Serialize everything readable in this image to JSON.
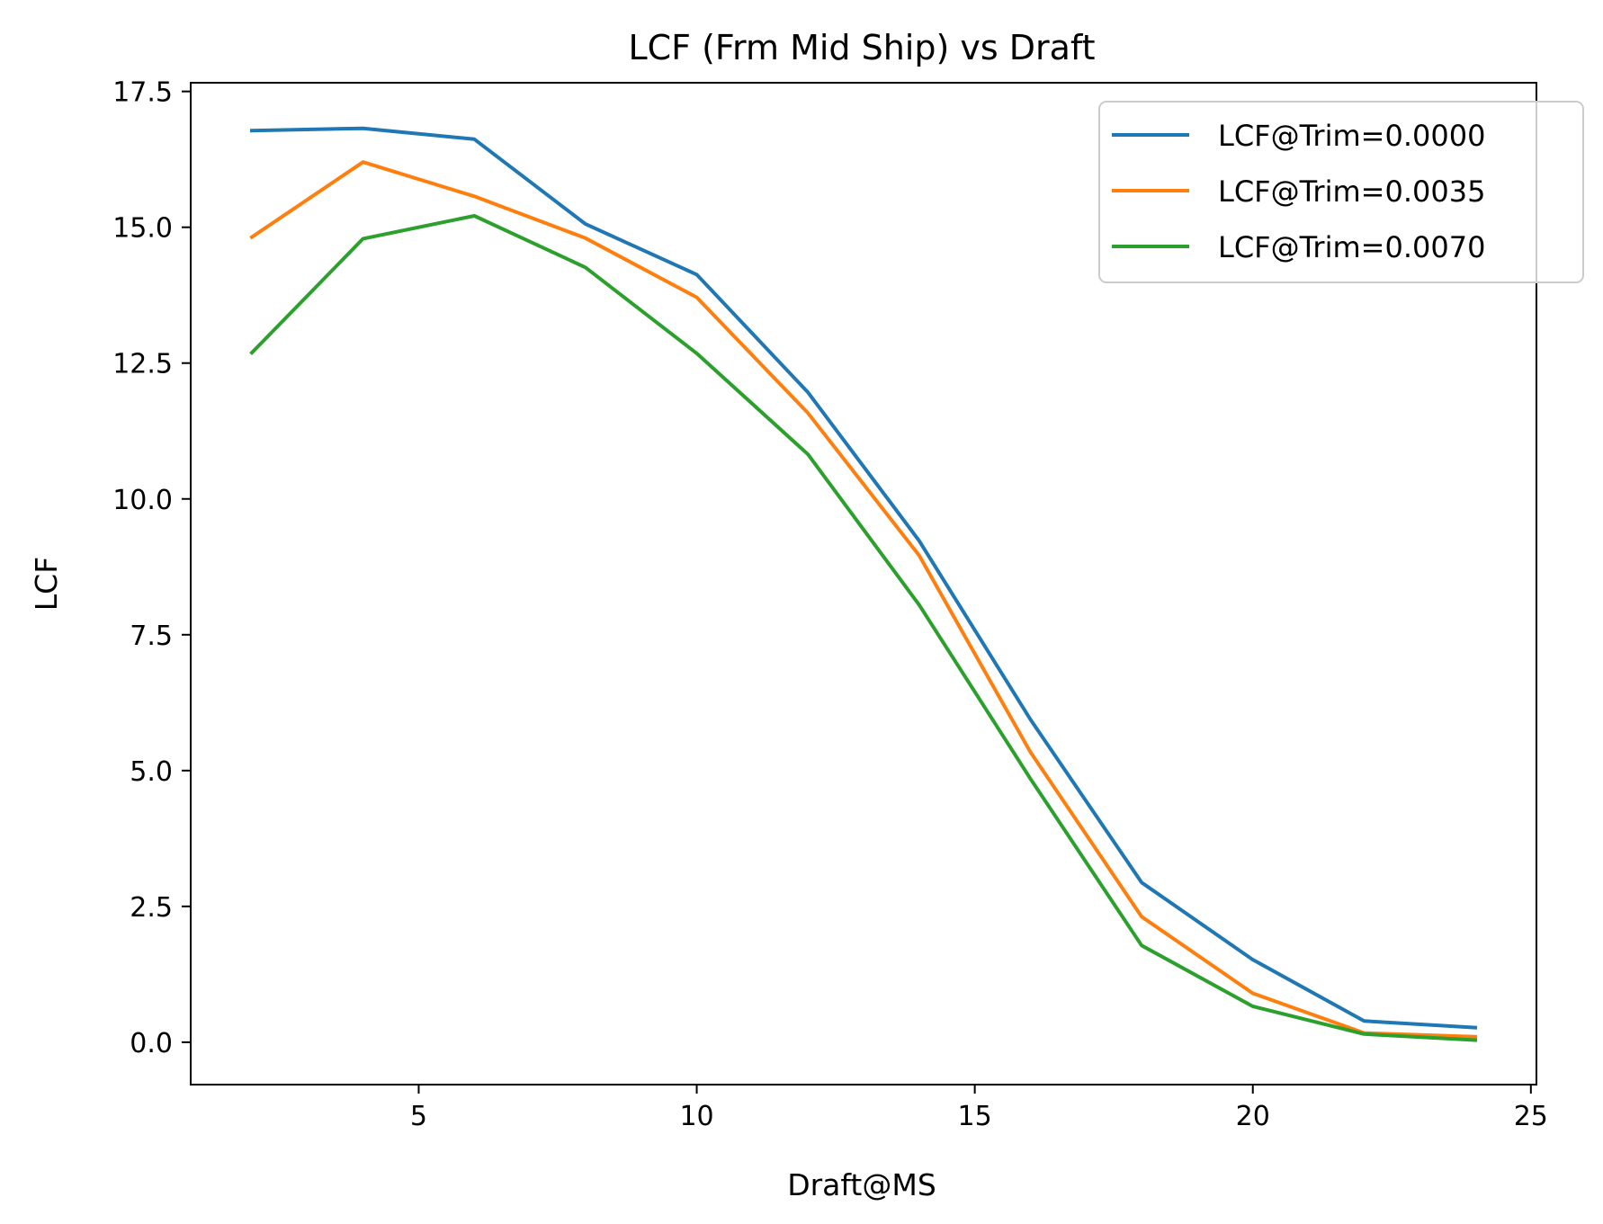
{
  "chart_data": {
    "type": "line",
    "title": "LCF (Frm Mid Ship) vs Draft",
    "xlabel": "Draft@MS",
    "ylabel": "LCF",
    "xlim": [
      0.9,
      25.1
    ],
    "ylim": [
      -0.78,
      17.66
    ],
    "x_ticks": [
      5,
      10,
      15,
      20,
      25
    ],
    "x_tick_labels": [
      "5",
      "10",
      "15",
      "20",
      "25"
    ],
    "y_ticks": [
      0.0,
      2.5,
      5.0,
      7.5,
      10.0,
      12.5,
      15.0,
      17.5
    ],
    "y_tick_labels": [
      "0.0",
      "2.5",
      "5.0",
      "7.5",
      "10.0",
      "12.5",
      "15.0",
      "17.5"
    ],
    "grid": false,
    "legend_position": "top-right",
    "x": [
      2,
      4,
      6,
      8,
      10,
      12,
      14,
      16,
      18,
      20,
      22,
      24
    ],
    "series": [
      {
        "name": "LCF@Trim=0.0000",
        "color": "#1f77b4",
        "values": [
          16.78,
          16.82,
          16.62,
          15.06,
          14.13,
          11.96,
          9.23,
          5.94,
          2.94,
          1.52,
          0.39,
          0.27
        ]
      },
      {
        "name": "LCF@Trim=0.0035",
        "color": "#ff7f0e",
        "values": [
          14.82,
          16.2,
          15.57,
          14.8,
          13.71,
          11.58,
          8.96,
          5.34,
          2.31,
          0.9,
          0.17,
          0.1
        ]
      },
      {
        "name": "LCF@Trim=0.0070",
        "color": "#2ca02c",
        "values": [
          12.69,
          14.79,
          15.21,
          14.26,
          12.68,
          10.82,
          8.05,
          4.85,
          1.78,
          0.66,
          0.15,
          0.04
        ]
      }
    ]
  }
}
